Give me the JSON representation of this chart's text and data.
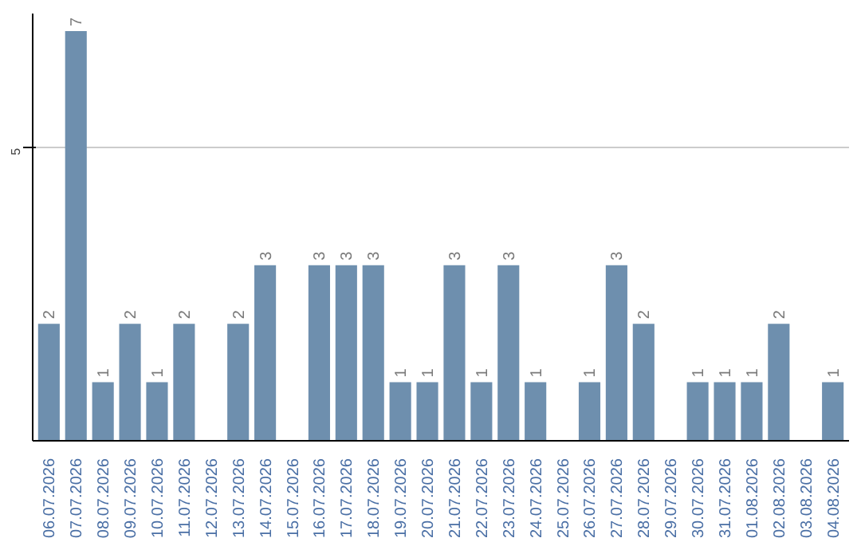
{
  "chart_data": {
    "type": "bar",
    "categories": [
      "06.07.2026",
      "07.07.2026",
      "08.07.2026",
      "09.07.2026",
      "10.07.2026",
      "11.07.2026",
      "12.07.2026",
      "13.07.2026",
      "14.07.2026",
      "15.07.2026",
      "16.07.2026",
      "17.07.2026",
      "18.07.2026",
      "19.07.2026",
      "20.07.2026",
      "21.07.2026",
      "22.07.2026",
      "23.07.2026",
      "24.07.2026",
      "25.07.2026",
      "26.07.2026",
      "27.07.2026",
      "28.07.2026",
      "29.07.2026",
      "30.07.2026",
      "31.07.2026",
      "01.08.2026",
      "02.08.2026",
      "03.08.2026",
      "04.08.2026"
    ],
    "values": [
      2,
      7,
      1,
      2,
      1,
      2,
      null,
      2,
      3,
      null,
      3,
      3,
      3,
      1,
      1,
      3,
      1,
      3,
      1,
      null,
      1,
      3,
      2,
      null,
      1,
      1,
      1,
      2,
      null,
      1
    ],
    "color": "#6e8fae",
    "ylim": [
      0,
      7.3
    ],
    "yticks": [
      5
    ],
    "grid": "y",
    "data_labels": true
  }
}
